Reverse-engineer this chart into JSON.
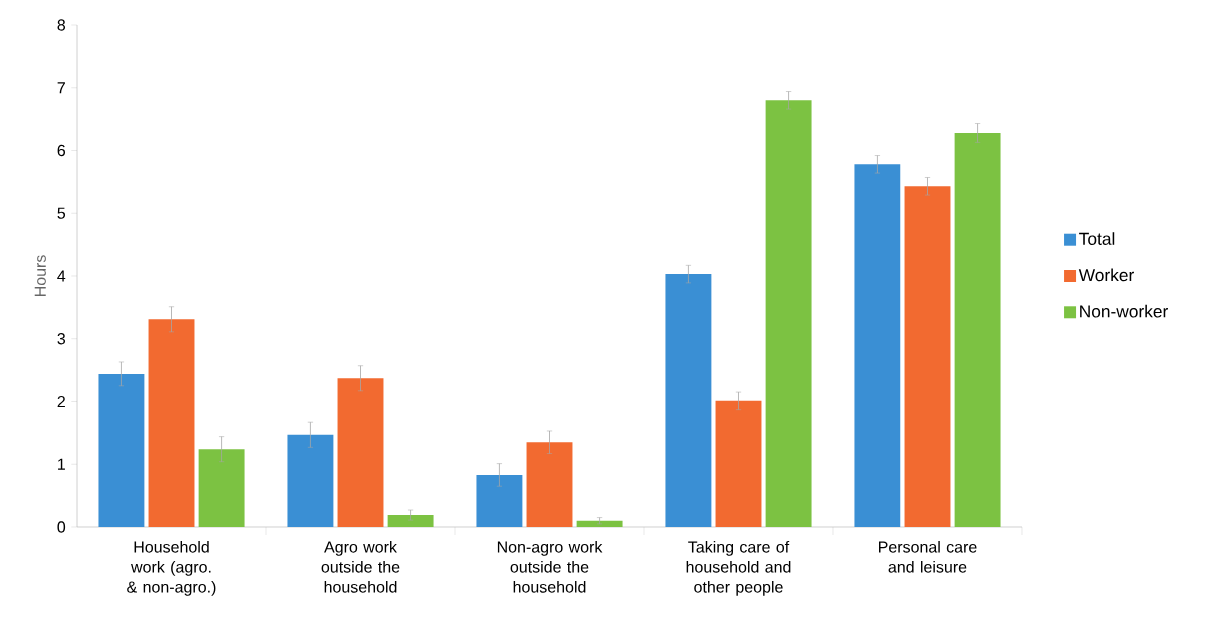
{
  "chart_data": {
    "type": "bar",
    "ylabel": "Hours",
    "categories": [
      "Household work (agro. & non-agro.)",
      "Agro work outside the household",
      "Non-agro work outside the household",
      "Taking care of household and other people",
      "Personal care and leisure"
    ],
    "series": [
      {
        "name": "Total",
        "color": "#3a8fd4",
        "values": [
          2.44,
          1.47,
          0.83,
          4.03,
          5.78
        ],
        "errors": [
          0.19,
          0.2,
          0.18,
          0.14,
          0.14
        ]
      },
      {
        "name": "Worker",
        "color": "#f26a30",
        "values": [
          3.31,
          2.37,
          1.35,
          2.01,
          5.43
        ],
        "errors": [
          0.2,
          0.2,
          0.18,
          0.14,
          0.14
        ]
      },
      {
        "name": "Non-worker",
        "color": "#7cc242",
        "values": [
          1.24,
          0.19,
          0.1,
          6.8,
          6.28
        ],
        "errors": [
          0.2,
          0.08,
          0.05,
          0.14,
          0.15
        ]
      }
    ],
    "ylim": [
      0,
      8
    ],
    "yticks": [
      0,
      1,
      2,
      3,
      4,
      5,
      6,
      7,
      8
    ],
    "legend": "right",
    "grid": false
  }
}
